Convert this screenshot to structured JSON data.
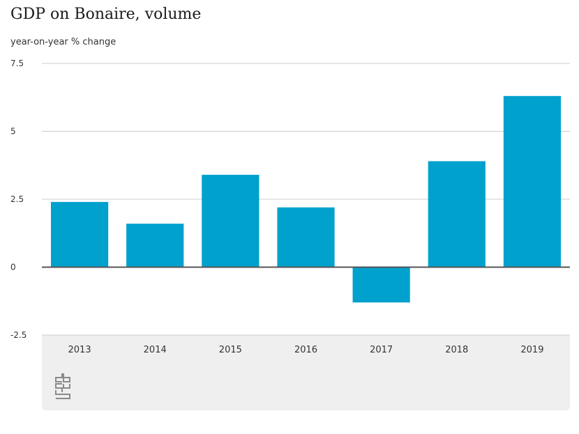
{
  "title": "GDP on Bonaire, volume",
  "subtitle": "year-on-year % change",
  "logo_icon": "cbs-logo-icon",
  "colors": {
    "bar": "#00a1cd",
    "grid": "#cccccc",
    "zero_line": "#555555",
    "panel": "#efefef"
  },
  "chart_data": {
    "type": "bar",
    "title": "GDP on Bonaire, volume",
    "ylabel": "year-on-year % change",
    "xlabel": "",
    "categories": [
      "2013",
      "2014",
      "2015",
      "2016",
      "2017",
      "2018",
      "2019"
    ],
    "values": [
      2.4,
      1.6,
      3.4,
      2.2,
      -1.3,
      3.9,
      6.3
    ],
    "ylim": [
      -2.5,
      7.5
    ],
    "yticks": [
      -2.5,
      0,
      2.5,
      5,
      7.5
    ],
    "ytick_labels": [
      "-2.5",
      "0",
      "2.5",
      "5",
      "7.5"
    ],
    "grid": true,
    "legend": "none"
  }
}
